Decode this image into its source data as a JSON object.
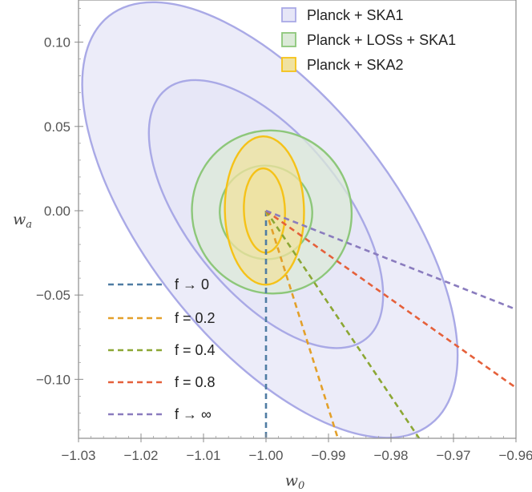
{
  "chart_data": {
    "type": "contour",
    "xlabel": "w",
    "xlabel_sub": "0",
    "ylabel": "w",
    "ylabel_sub": "a",
    "xlim": [
      -1.03,
      -0.96
    ],
    "ylim": [
      -0.135,
      0.125
    ],
    "xticks": [
      -1.03,
      -1.02,
      -1.01,
      -1.0,
      -0.99,
      -0.98,
      -0.97,
      -0.96
    ],
    "xtick_labels": [
      "−1.03",
      "−1.02",
      "−1.01",
      "−1.00",
      "−0.99",
      "−0.98",
      "−0.97",
      "−0.96"
    ],
    "yticks": [
      0.1,
      0.05,
      0.0,
      -0.05,
      -0.1
    ],
    "ytick_labels": [
      "0.10",
      "0.05",
      "0.00",
      "−0.05",
      "−0.10"
    ],
    "fiducial": [
      -1.0,
      0.0
    ],
    "contours": [
      {
        "name": "Planck + SKA1",
        "fill": "#E6E6F7",
        "stroke": "#A9A9E6",
        "ellipses": [
          {
            "points": [
              [
                -1.0245,
                0.1155
              ],
              [
                -0.973,
                -0.1265
              ],
              [
                -0.994,
                0.064
              ],
              [
                -1.006,
                -0.075
              ]
            ]
          },
          {
            "points": [
              [
                -1.016,
                0.0745
              ],
              [
                -0.984,
                -0.0735
              ],
              [
                -0.9965,
                0.04
              ],
              [
                -1.0035,
                -0.049
              ]
            ]
          }
        ]
      },
      {
        "name": "Planck + LOSs + SKA1",
        "fill": "#DCEAD8",
        "stroke": "#8DC77A",
        "ellipses": [
          {
            "points": [
              [
                -1.003,
                0.0445
              ],
              [
                -0.9935,
                -0.046
              ],
              [
                -0.9948,
                0.0425
              ],
              [
                -1.005,
                -0.044
              ]
            ]
          },
          {
            "points": [
              [
                -1.003,
                0.0245
              ],
              [
                -0.997,
                -0.0265
              ],
              [
                -0.996,
                0.022
              ],
              [
                -1.004,
                -0.024
              ]
            ]
          }
        ]
      },
      {
        "name": "Planck + SKA2",
        "fill": "#F0E2A0",
        "stroke": "#F5C218",
        "ellipses": [
          {
            "points": [
              [
                -1.0005,
                0.044
              ],
              [
                -1.0,
                -0.044
              ],
              [
                -0.994,
                0.004
              ],
              [
                -1.0065,
                -0.0035
              ]
            ]
          },
          {
            "points": [
              [
                -1.0005,
                0.025
              ],
              [
                -1.0,
                -0.025
              ],
              [
                -0.997,
                0.002
              ],
              [
                -1.0035,
                -0.0015
              ]
            ]
          }
        ]
      }
    ],
    "lines": [
      {
        "name": "f → 0",
        "color": "#4F7CA3",
        "points": [
          [
            -1.0,
            0.0
          ],
          [
            -1.0,
            -0.135
          ]
        ]
      },
      {
        "name": "f = 0.2",
        "color": "#E3A02A",
        "points": [
          [
            -1.0,
            0.0
          ],
          [
            -0.9885,
            -0.135
          ]
        ]
      },
      {
        "name": "f = 0.4",
        "color": "#8CA734",
        "points": [
          [
            -1.0,
            0.0
          ],
          [
            -0.9755,
            -0.135
          ]
        ]
      },
      {
        "name": "f = 0.8",
        "color": "#E5603A",
        "points": [
          [
            -1.0,
            0.0
          ],
          [
            -0.96,
            -0.105
          ]
        ]
      },
      {
        "name": "f → ∞",
        "color": "#8A7CBE",
        "points": [
          [
            -1.0,
            0.0
          ],
          [
            -0.96,
            -0.0585
          ]
        ]
      }
    ],
    "legend_contours_position": "top-right",
    "legend_lines_position": "bottom-left"
  }
}
